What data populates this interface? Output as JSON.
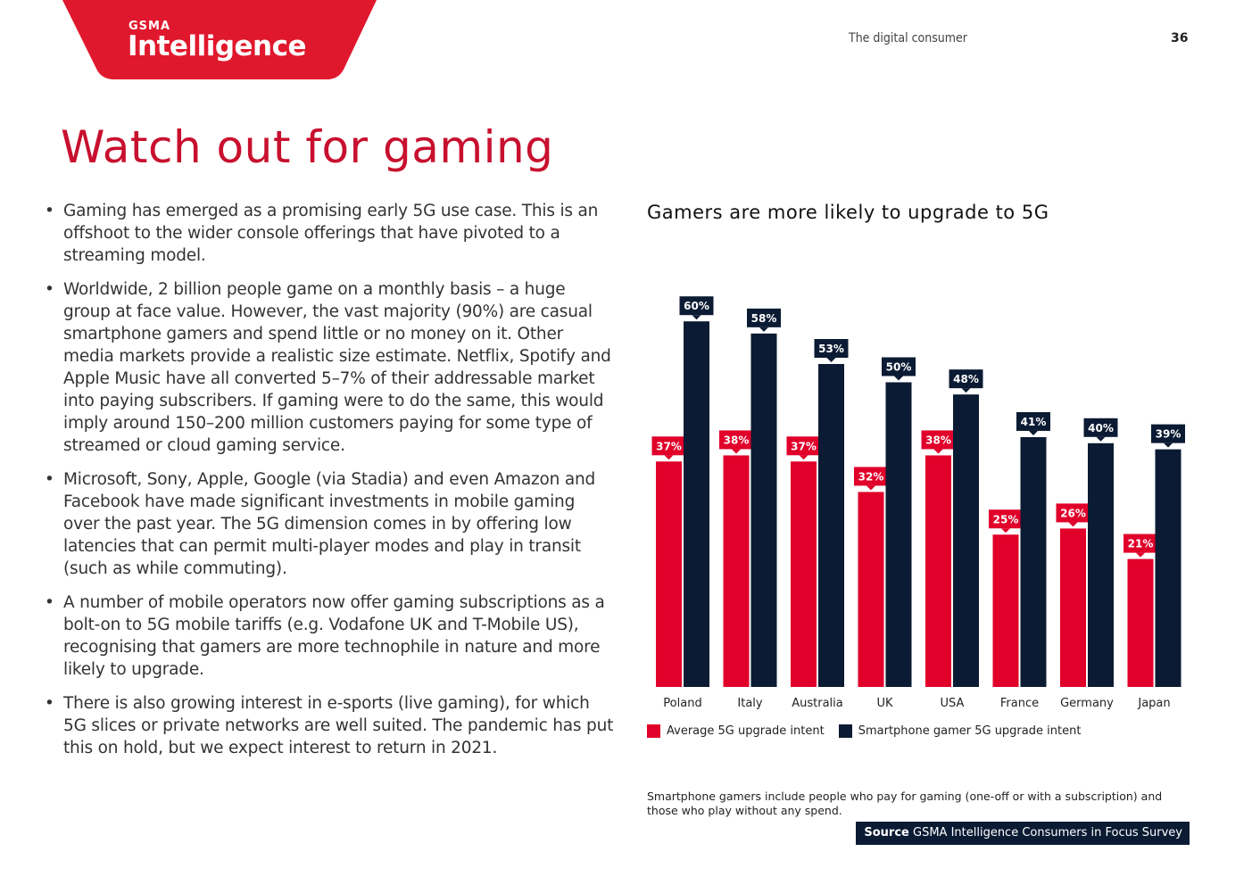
{
  "header": {
    "logo_small": "GSMA",
    "logo_big": "Intelligence",
    "section": "The digital consumer",
    "page_number": "36"
  },
  "title": "Watch out for gaming",
  "bullets": [
    "Gaming has emerged as a promising early 5G use case. This is an offshoot to the wider console offerings that have pivoted to a streaming model.",
    "Worldwide, 2 billion people game on a monthly basis – a huge group at face value. However, the vast majority (90%) are casual smartphone gamers and spend little or no money on it. Other media markets provide a realistic size estimate. Netflix, Spotify and Apple Music have all converted 5–7% of their addressable market into paying subscribers. If gaming were to do the same, this would imply around 150–200 million customers paying for some type of streamed or cloud gaming service.",
    "Microsoft, Sony, Apple, Google (via Stadia) and even Amazon and Facebook have made significant investments in mobile gaming over the past year. The 5G dimension comes in by offering low latencies that can permit multi-player modes and play in transit (such as while commuting).",
    "A number of mobile operators now offer gaming subscriptions as a bolt-on to 5G mobile tariffs (e.g. Vodafone UK and T-Mobile US), recognising that gamers are more technophile in nature and more likely to upgrade.",
    "There is also growing interest in e-sports (live gaming), for which 5G slices or private networks are well suited. The pandemic has put this on hold, but we expect interest to return in 2021."
  ],
  "chart_data": {
    "type": "bar",
    "title": "Gamers are more likely to upgrade to 5G",
    "categories": [
      "Poland",
      "Italy",
      "Australia",
      "UK",
      "USA",
      "France",
      "Germany",
      "Japan"
    ],
    "series": [
      {
        "name": "Average 5G upgrade intent",
        "values": [
          37,
          38,
          37,
          32,
          38,
          25,
          26,
          21
        ],
        "color": "#e0002a"
      },
      {
        "name": "Smartphone gamer 5G upgrade intent",
        "values": [
          60,
          58,
          53,
          50,
          48,
          41,
          40,
          39
        ],
        "color": "#0b1b33"
      }
    ],
    "value_suffix": "%",
    "ylim": [
      0,
      60
    ],
    "grid": false
  },
  "footnote": "Smartphone gamers include people who pay for gaming (one-off or with a subscription) and those who play without any spend.",
  "source": {
    "label": "Source",
    "text": "GSMA Intelligence Consumers in Focus Survey"
  },
  "colors": {
    "brand_red": "#e0182d",
    "navy": "#0b1b33",
    "title_red": "#c8102e"
  }
}
